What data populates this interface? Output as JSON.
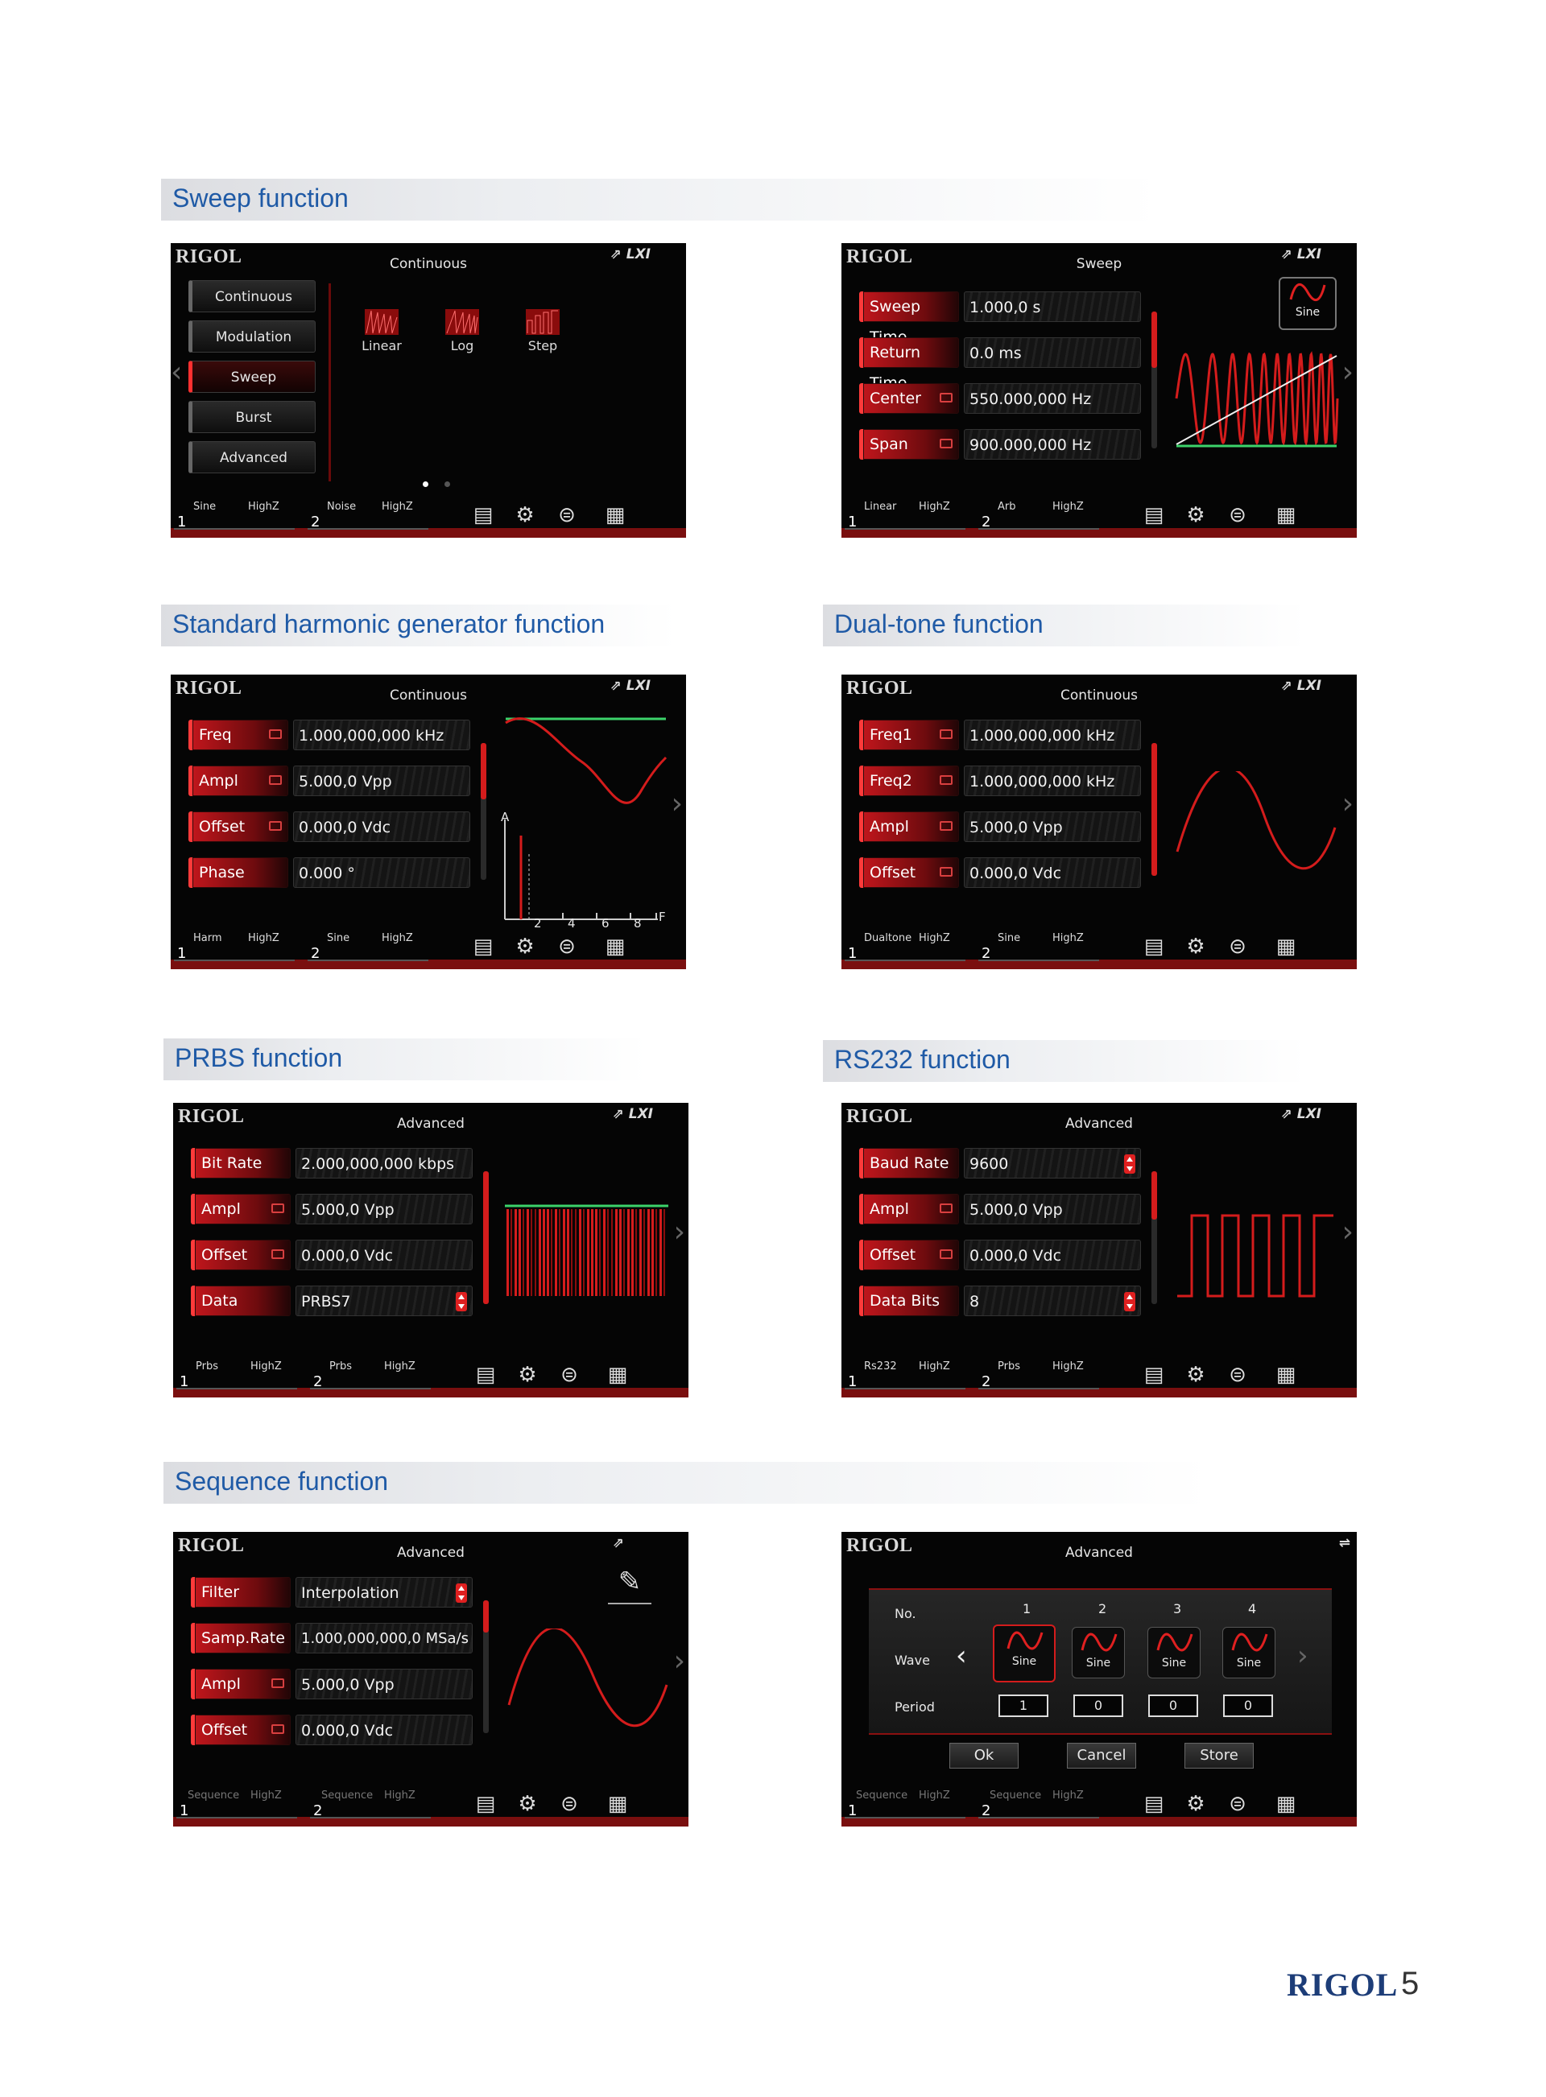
{
  "sections": {
    "sweep": "Sweep function",
    "harmonic": "Standard harmonic generator function",
    "dualtone": "Dual-tone function",
    "prbs": "PRBS function",
    "rs232": "RS232 function",
    "sequence": "Sequence function"
  },
  "brand": "RIGOL",
  "page_number": "5",
  "lxi": "LXI",
  "icons": [
    "document-icon",
    "gear-icon",
    "sync-icon",
    "printer-icon",
    "usb-icon",
    "trigger-icon"
  ],
  "screens": {
    "s1": {
      "mode": "Continuous",
      "menu": [
        "Continuous",
        "Modulation",
        "Sweep",
        "Burst",
        "Advanced"
      ],
      "options": [
        "Linear",
        "Log",
        "Step"
      ],
      "footer": {
        "c1a": "Sine",
        "c1b": "HighZ",
        "c2a": "Noise",
        "c2b": "HighZ"
      }
    },
    "s2": {
      "mode": "Sweep",
      "params": [
        {
          "label": "Sweep Time",
          "value": "1.000,0 s"
        },
        {
          "label": "Return Time",
          "value": "0.0 ms"
        },
        {
          "label": "Center",
          "value": "550.000,000 Hz"
        },
        {
          "label": "Span",
          "value": "900.000,000 Hz"
        }
      ],
      "wave_label": "Sine",
      "footer": {
        "c1a": "Linear",
        "c1b": "HighZ",
        "c2a": "Arb",
        "c2b": "HighZ"
      }
    },
    "s3": {
      "mode": "Continuous",
      "params": [
        {
          "label": "Freq",
          "value": "1.000,000,000 kHz"
        },
        {
          "label": "Ampl",
          "value": "5.000,0 Vpp"
        },
        {
          "label": "Offset",
          "value": "0.000,0 Vdc"
        },
        {
          "label": "Phase",
          "value": "0.000 °"
        }
      ],
      "axis": {
        "y": "A",
        "x": "F",
        "ticks": [
          "2",
          "4",
          "6",
          "8"
        ]
      },
      "footer": {
        "c1a": "Harm",
        "c1b": "HighZ",
        "c2a": "Sine",
        "c2b": "HighZ"
      }
    },
    "s4": {
      "mode": "Continuous",
      "params": [
        {
          "label": "Freq1",
          "value": "1.000,000,000 kHz"
        },
        {
          "label": "Freq2",
          "value": "1.000,000,000 kHz"
        },
        {
          "label": "Ampl",
          "value": "5.000,0 Vpp"
        },
        {
          "label": "Offset",
          "value": "0.000,0 Vdc"
        }
      ],
      "footer": {
        "c1a": "Dualtone",
        "c1b": "HighZ",
        "c2a": "Sine",
        "c2b": "HighZ"
      }
    },
    "s5": {
      "mode": "Advanced",
      "params": [
        {
          "label": "Bit Rate",
          "value": "2.000,000,000 kbps"
        },
        {
          "label": "Ampl",
          "value": "5.000,0 Vpp"
        },
        {
          "label": "Offset",
          "value": "0.000,0 Vdc"
        },
        {
          "label": "Data",
          "value": "PRBS7"
        }
      ],
      "footer": {
        "c1a": "Prbs",
        "c1b": "HighZ",
        "c2a": "Prbs",
        "c2b": "HighZ"
      }
    },
    "s6": {
      "mode": "Advanced",
      "params": [
        {
          "label": "Baud Rate",
          "value": "9600"
        },
        {
          "label": "Ampl",
          "value": "5.000,0 Vpp"
        },
        {
          "label": "Offset",
          "value": "0.000,0 Vdc"
        },
        {
          "label": "Data Bits",
          "value": "8"
        }
      ],
      "footer": {
        "c1a": "Rs232",
        "c1b": "HighZ",
        "c2a": "Prbs",
        "c2b": "HighZ"
      }
    },
    "s7": {
      "mode": "Advanced",
      "params": [
        {
          "label": "Filter",
          "value": "Interpolation"
        },
        {
          "label": "Samp.Rate",
          "value": "1.000,000,000,0 MSa/s"
        },
        {
          "label": "Ampl",
          "value": "5.000,0 Vpp"
        },
        {
          "label": "Offset",
          "value": "0.000,0 Vdc"
        }
      ],
      "footer": {
        "c1a": "Sequence",
        "c1b": "HighZ",
        "c2a": "Sequence",
        "c2b": "HighZ"
      }
    },
    "s8": {
      "mode": "Advanced",
      "table": {
        "row_no": "No.",
        "row_wave": "Wave",
        "row_period": "Period",
        "cols": [
          "1",
          "2",
          "3",
          "4"
        ],
        "waves": [
          "Sine",
          "Sine",
          "Sine",
          "Sine"
        ],
        "periods": [
          "1",
          "0",
          "0",
          "0"
        ]
      },
      "buttons": {
        "ok": "Ok",
        "cancel": "Cancel",
        "store": "Store"
      },
      "footer": {
        "c1a": "Sequence",
        "c1b": "HighZ",
        "c2a": "Sequence",
        "c2b": "HighZ"
      }
    }
  }
}
